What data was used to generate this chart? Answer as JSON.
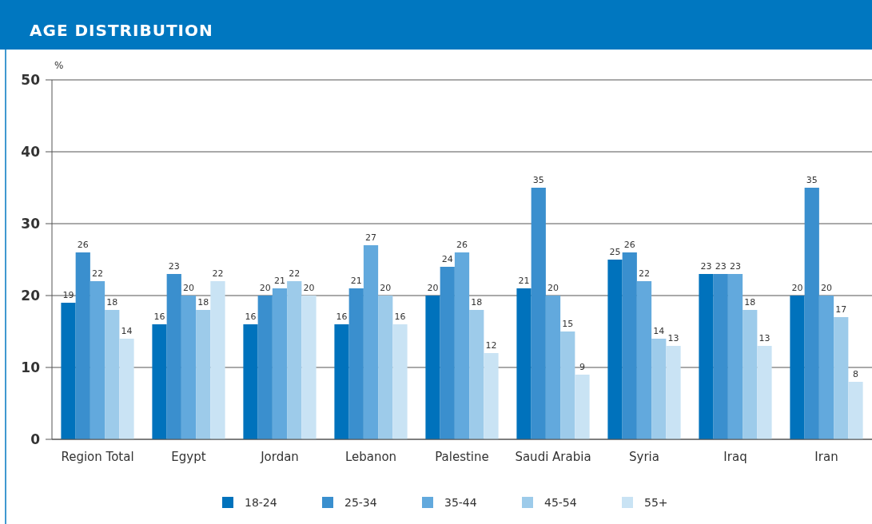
{
  "chart_data": {
    "type": "bar",
    "title": "AGE DISTRIBUTION",
    "ylabel": "%",
    "categories": [
      "Region Total",
      "Egypt",
      "Jordan",
      "Lebanon",
      "Palestine",
      "Saudi Arabia",
      "Syria",
      "Iraq",
      "Iran"
    ],
    "series": [
      {
        "name": "18-24",
        "color": "#0072bc",
        "values": [
          19,
          16,
          16,
          16,
          20,
          21,
          25,
          23,
          20
        ]
      },
      {
        "name": "25-34",
        "color": "#3a8fce",
        "values": [
          26,
          23,
          20,
          21,
          24,
          35,
          26,
          23,
          35
        ]
      },
      {
        "name": "35-44",
        "color": "#62a9dd",
        "values": [
          22,
          20,
          21,
          27,
          26,
          20,
          22,
          23,
          20
        ]
      },
      {
        "name": "45-54",
        "color": "#9dcbea",
        "values": [
          18,
          18,
          22,
          20,
          18,
          15,
          14,
          18,
          17
        ]
      },
      {
        "name": "55+",
        "color": "#c9e3f4",
        "values": [
          14,
          22,
          20,
          16,
          12,
          9,
          13,
          13,
          8
        ]
      }
    ],
    "ylim": [
      0,
      50
    ],
    "yticks": [
      0,
      10,
      20,
      30,
      40,
      50
    ],
    "grid": "y",
    "legend": "bottom",
    "data_labels": true
  }
}
